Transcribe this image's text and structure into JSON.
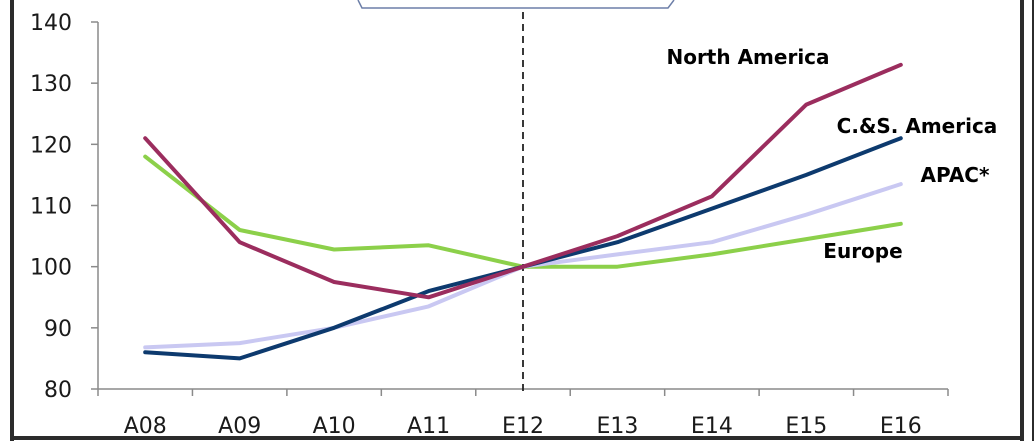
{
  "chart_data": {
    "type": "line",
    "categories": [
      "A08",
      "A09",
      "A10",
      "A11",
      "E12",
      "E13",
      "E14",
      "E15",
      "E16"
    ],
    "ylim": [
      80,
      140
    ],
    "yticks": [
      80,
      90,
      100,
      110,
      120,
      130,
      140
    ],
    "divider_after_category": "E12",
    "series": [
      {
        "name": "North America",
        "color": "#9b2d5e",
        "values": [
          121,
          104,
          97.5,
          95,
          100,
          105,
          111.5,
          126.5,
          133
        ]
      },
      {
        "name": "C.&S. America",
        "color": "#0d3a6e",
        "values": [
          86,
          85,
          90,
          96,
          100,
          104,
          109.5,
          115,
          121
        ]
      },
      {
        "name": "APAC*",
        "color": "#c9c8f2",
        "values": [
          86.8,
          87.5,
          90,
          93.5,
          100,
          102,
          104,
          108.5,
          113.5
        ]
      },
      {
        "name": "Europe",
        "color": "#8cd04a",
        "values": [
          118,
          106,
          102.8,
          103.5,
          100,
          100,
          102,
          104.5,
          107
        ]
      }
    ]
  }
}
